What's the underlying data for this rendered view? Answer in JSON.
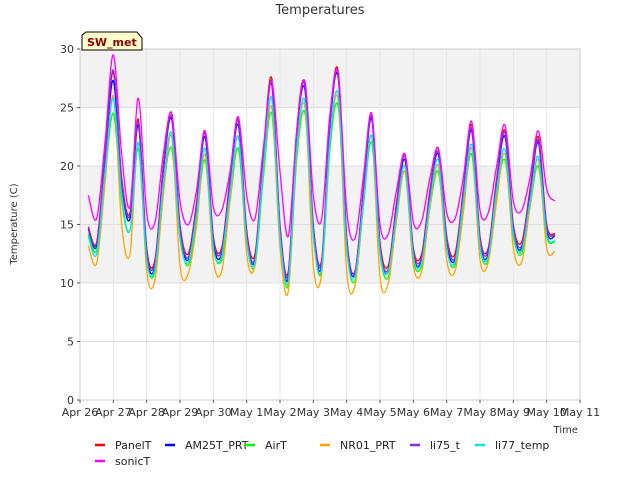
{
  "chart_data": {
    "type": "line",
    "title": "Temperatures",
    "xlabel": "Time",
    "ylabel": "Temperature (C)",
    "station_tag": "SW_met",
    "xlim": [
      0,
      15
    ],
    "ylim": [
      0,
      30
    ],
    "yticks": [
      0,
      5,
      10,
      15,
      20,
      25,
      30
    ],
    "xtick_labels": [
      "Apr 26",
      "Apr 27",
      "Apr 28",
      "Apr 29",
      "Apr 30",
      "May 1",
      "May 2",
      "May 3",
      "May 4",
      "May 5",
      "May 6",
      "May 7",
      "May 8",
      "May 9",
      "May 10",
      "May 11"
    ],
    "grid": true,
    "legend_position": "bottom",
    "x_day_index_of_first_point": 0.25,
    "x_step_days": 0.25,
    "series": [
      {
        "name": "PanelT",
        "color": "#ff0000",
        "values": [
          14.8,
          13.5,
          21,
          28,
          19,
          16,
          24,
          13,
          12,
          20,
          24.5,
          15,
          12.5,
          17,
          23,
          14,
          13,
          19,
          24,
          14.5,
          12.5,
          21,
          27.5,
          15,
          11,
          23,
          27,
          15,
          12,
          24,
          28,
          14,
          11,
          18,
          24.5,
          13.5,
          11.5,
          17,
          21,
          13,
          12.5,
          18,
          21.5,
          14,
          12.5,
          18,
          23.5,
          14,
          13,
          19,
          23,
          15,
          13.5,
          18,
          22.5,
          15,
          14.2
        ]
      },
      {
        "name": "AM25T_PRT",
        "color": "#0000ff",
        "values": [
          14.6,
          13.2,
          20.5,
          27.3,
          18.5,
          15.5,
          23.5,
          12.5,
          11.5,
          19.5,
          24,
          14.5,
          12,
          16.5,
          22.5,
          13.5,
          12.5,
          18.5,
          23.5,
          14,
          12,
          20.5,
          27,
          14.5,
          10.5,
          22.5,
          26.5,
          14.5,
          11.5,
          23.5,
          27.5,
          13.5,
          10.8,
          17.5,
          24,
          13,
          11,
          16.5,
          20.5,
          12.5,
          12,
          17.5,
          21,
          13.5,
          12,
          17.5,
          23,
          13.5,
          12.5,
          18.5,
          22.5,
          14.5,
          13,
          17.5,
          22,
          14.5,
          14
        ]
      },
      {
        "name": "AirT",
        "color": "#00ff00",
        "values": [
          14.2,
          12.8,
          19,
          24.5,
          17,
          14.5,
          21.5,
          12,
          11,
          18,
          21.5,
          14,
          11.5,
          15.5,
          20.5,
          13,
          12,
          17,
          21.5,
          13.5,
          11.5,
          19,
          24.5,
          14,
          9.8,
          20.5,
          24.5,
          14,
          11,
          21.5,
          25,
          13,
          10.2,
          16.5,
          22,
          12.5,
          10.5,
          15.5,
          19.5,
          12,
          11.5,
          16.5,
          19.5,
          13,
          11.5,
          16.5,
          21,
          13,
          12,
          17.5,
          20.5,
          14,
          12.5,
          16.5,
          20,
          14,
          13.5
        ]
      },
      {
        "name": "NR01_PRT",
        "color": "#ffa500",
        "values": [
          13.2,
          11.7,
          18.5,
          26,
          15,
          12.5,
          22,
          11,
          10.3,
          17.5,
          22.5,
          11.5,
          10.8,
          15,
          21,
          12,
          11,
          17,
          22.5,
          12.5,
          11.5,
          19.5,
          25,
          13,
          9.3,
          21,
          25,
          11.5,
          10.8,
          22,
          25.5,
          11,
          9.8,
          16.5,
          22.5,
          10.5,
          10,
          15.5,
          19.5,
          11.5,
          11,
          16.5,
          20,
          12,
          11,
          16,
          21.5,
          12,
          11.8,
          17,
          21,
          13,
          11.8,
          16.5,
          20.5,
          13,
          12.7
        ]
      },
      {
        "name": "li75_t",
        "color": "#8a2be2",
        "values": [
          14.7,
          13.4,
          20.8,
          28.2,
          18.8,
          15.8,
          23.8,
          12.8,
          11.8,
          19.8,
          24.2,
          14.8,
          12.2,
          16.8,
          22.8,
          13.8,
          12.8,
          18.8,
          23.8,
          14.2,
          12.2,
          20.8,
          27.2,
          14.8,
          10.8,
          22.8,
          26.8,
          14.8,
          11.8,
          23.8,
          27.8,
          13.8,
          11,
          17.8,
          24.2,
          13.2,
          11.2,
          16.8,
          20.8,
          12.8,
          12.2,
          17.8,
          21.2,
          13.8,
          12.2,
          17.8,
          23.2,
          13.8,
          12.8,
          18.8,
          22.8,
          14.8,
          13.2,
          17.8,
          22.2,
          14.8,
          14.1
        ]
      },
      {
        "name": "li77_temp",
        "color": "#00e5ff",
        "values": [
          14,
          12.5,
          19.5,
          25.8,
          17.5,
          14.5,
          22,
          12,
          11.3,
          18.5,
          22.8,
          13.8,
          11.8,
          16,
          21.5,
          13,
          12.3,
          17.8,
          22.5,
          13.6,
          11.8,
          19.8,
          25.8,
          14,
          10.2,
          21.5,
          25.5,
          14,
          11.3,
          22.3,
          26,
          13,
          10.6,
          16.8,
          22.6,
          12.6,
          11,
          16,
          20,
          12.3,
          11.8,
          17,
          20.5,
          13,
          11.8,
          17,
          21.8,
          13.2,
          12.3,
          18,
          21.4,
          14.2,
          12.8,
          17,
          20.8,
          14.2,
          13.6
        ]
      },
      {
        "name": "sonicT",
        "color": "#ff00ff",
        "values": [
          17.5,
          15.5,
          22,
          29.5,
          21,
          16.5,
          25.8,
          16,
          15.2,
          21,
          24.5,
          17,
          15,
          18,
          23,
          16.5,
          16.2,
          19.5,
          24.2,
          17.5,
          15.5,
          21.5,
          27.2,
          19.5,
          14,
          23,
          27.2,
          17.5,
          15.5,
          24.5,
          27.8,
          16.2,
          13.8,
          19,
          24.5,
          15,
          14.2,
          18,
          21,
          15.2,
          15.3,
          19,
          21.5,
          16,
          15.5,
          19,
          23.8,
          16.2,
          16,
          20,
          23.5,
          17,
          16.2,
          19,
          23,
          18,
          17
        ]
      }
    ]
  }
}
